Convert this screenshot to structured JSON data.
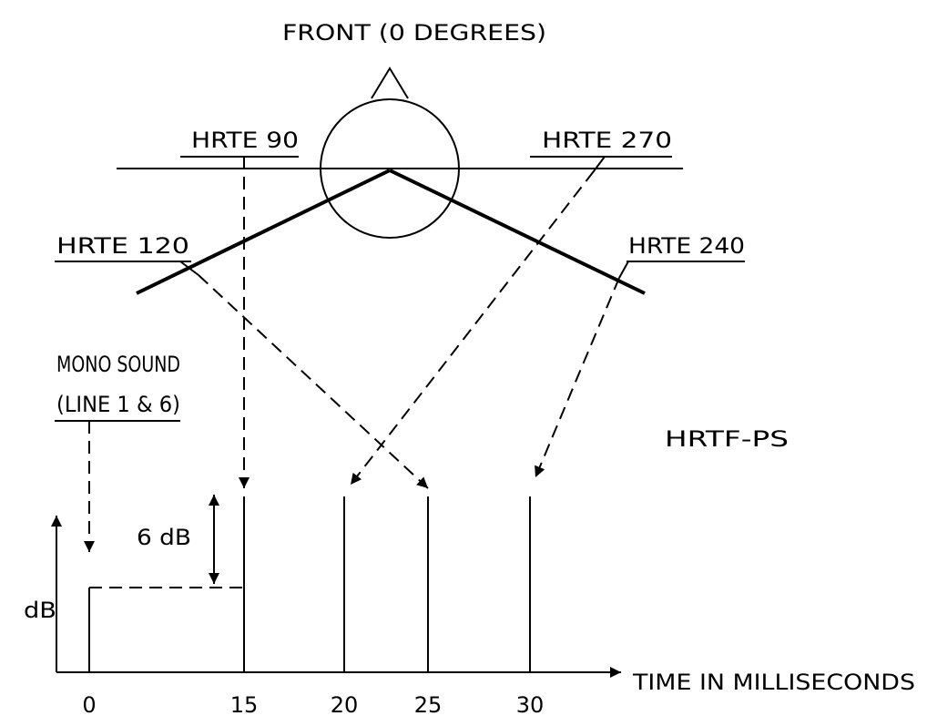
{
  "title": "FRONT (0 DEGREES)",
  "labels": {
    "hrte90": "HRTE 90",
    "hrte270": "HRTE 270",
    "hrte120": "HRTE 120",
    "hrte240": "HRTE 240",
    "mono_line1": "MONO SOUND",
    "mono_line2": "(LINE 1 & 6)",
    "hrtf_ps": "HRTF-PS",
    "six_db": "6 dB"
  },
  "axes": {
    "y_label": "dB",
    "x_label": "TIME IN MILLISECONDS",
    "x_ticks": [
      "0",
      "15",
      "20",
      "25",
      "30"
    ]
  }
}
